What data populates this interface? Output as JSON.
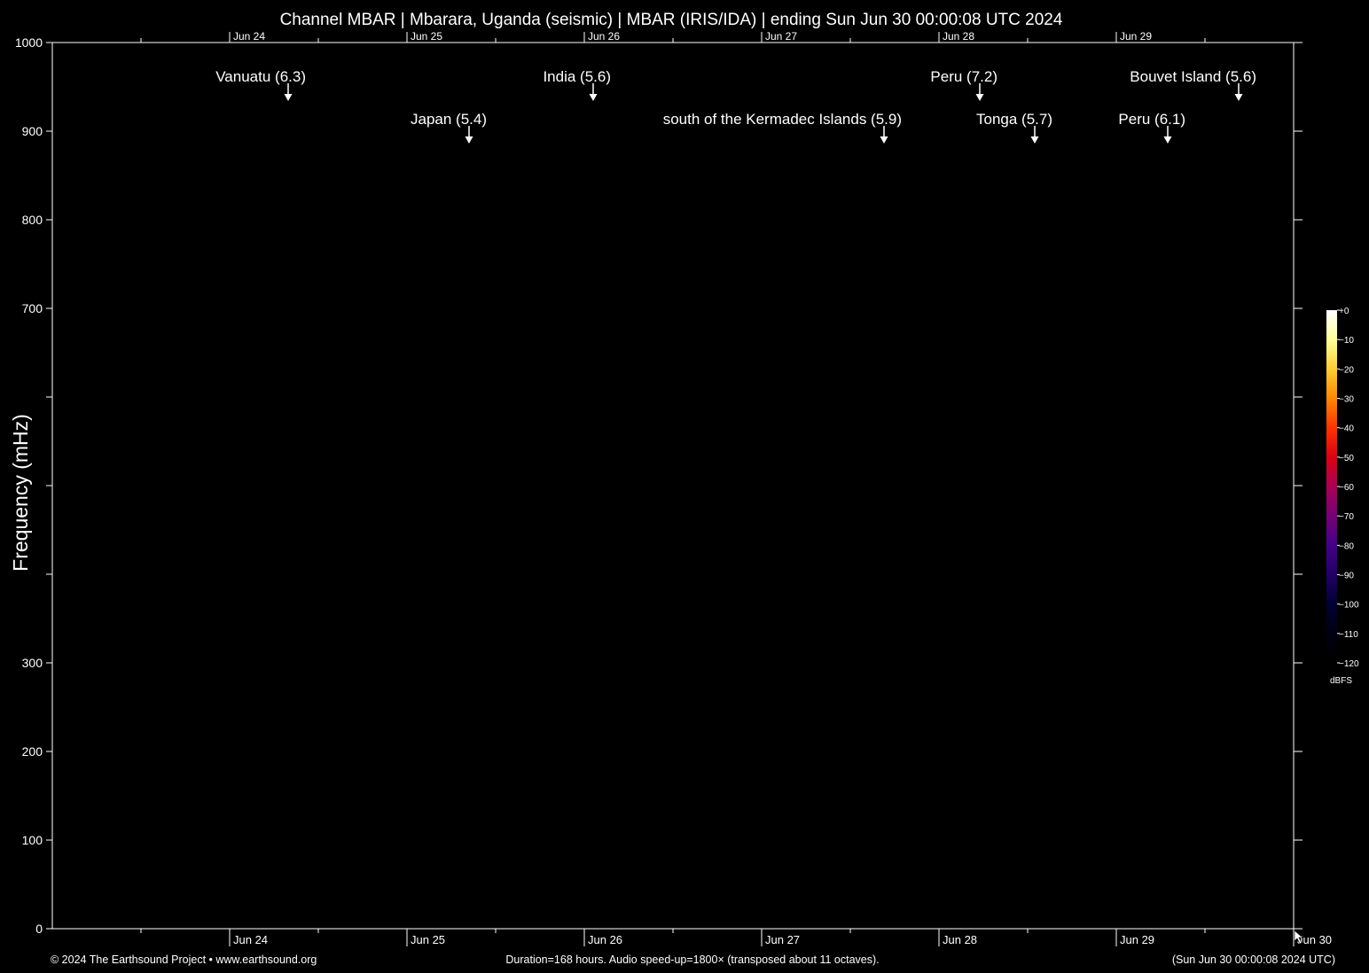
{
  "chart_data": {
    "type": "heatmap",
    "title": "Channel MBAR | Mbarara, Uganda (seismic) | MBAR (IRIS/IDA) | ending Sun Jun 30 00:00:08 UTC 2024",
    "ylabel": "Frequency (mHz)",
    "xlabel": "",
    "ylim": [
      0,
      1000
    ],
    "y_ticks": [
      {
        "value": 0,
        "label": "0"
      },
      {
        "value": 100,
        "label": "100"
      },
      {
        "value": 200,
        "label": "200"
      },
      {
        "value": 300,
        "label": "300"
      },
      {
        "value": 400,
        "label": ""
      },
      {
        "value": 500,
        "label": ""
      },
      {
        "value": 600,
        "label": ""
      },
      {
        "value": 700,
        "label": "700"
      },
      {
        "value": 800,
        "label": "800"
      },
      {
        "value": 900,
        "label": "900"
      },
      {
        "value": 1000,
        "label": "1000"
      }
    ],
    "x_range_days": [
      "Jun 23",
      "Jun 30"
    ],
    "x_ticks_top": [
      "Jun 24",
      "Jun 25",
      "Jun 26",
      "Jun 27",
      "Jun 28",
      "Jun 29"
    ],
    "x_ticks_bottom": [
      "Jun 24",
      "Jun 25",
      "Jun 26",
      "Jun 27",
      "Jun 28",
      "Jun 29",
      "Jun 30"
    ],
    "annotations": [
      {
        "label": "Vanuatu (6.3)",
        "day": 24.33
      },
      {
        "label": "India (5.6)",
        "day": 26.05
      },
      {
        "label": "Peru (7.2)",
        "day": 28.23
      },
      {
        "label": "Bouvet Island (5.6)",
        "day": 29.69
      },
      {
        "label": "Japan (5.4)",
        "day": 25.35
      },
      {
        "label": "south of the Kermadec Islands (5.9)",
        "day": 27.69
      },
      {
        "label": "Tonga (5.7)",
        "day": 28.54
      },
      {
        "label": "Peru (6.1)",
        "day": 29.29
      }
    ],
    "colorbar": {
      "unit": "dBFS",
      "ticks": [
        "+0",
        "−10",
        "−20",
        "−30",
        "−40",
        "−50",
        "−60",
        "−70",
        "−80",
        "−90",
        "−100",
        "−110",
        "−120"
      ],
      "colors": [
        "#ffffff",
        "#ffff99",
        "#ffcc33",
        "#ff8800",
        "#ff3300",
        "#dd0011",
        "#aa0055",
        "#770077",
        "#440088",
        "#220066",
        "#000033",
        "#000011",
        "#000000"
      ]
    },
    "grid": false,
    "spectrogram": "black (no signal)"
  },
  "footer": {
    "left": "© 2024 The Earthsound Project • www.earthsound.org",
    "center": "Duration=168 hours. Audio speed-up=1800× (transposed about 11 octaves).",
    "right": "(Sun Jun 30 00:00:08 2024 UTC)"
  }
}
